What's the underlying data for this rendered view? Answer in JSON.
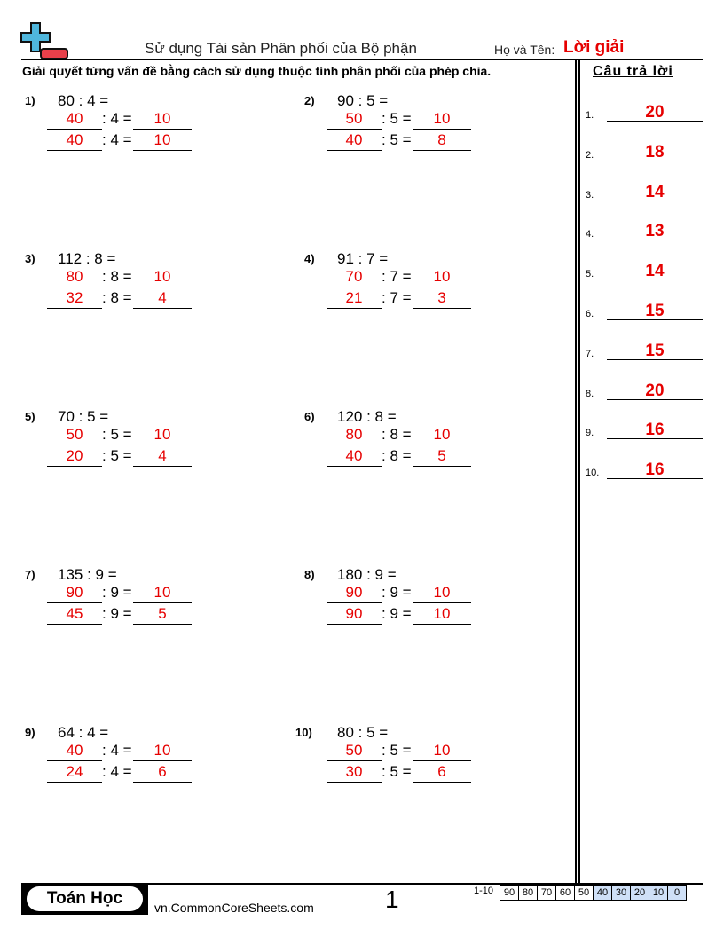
{
  "header": {
    "title": "Sử dụng Tài sản Phân phối của Bộ phận",
    "name_label": "Họ và Tên:",
    "name_value": "Lời giải",
    "instructions": "Giải quyết từng vấn đề bằng cách sử dụng thuộc tính phân phối của phép chia.",
    "answers_heading": "Câu trả lời"
  },
  "problems": [
    {
      "num": "1)",
      "expr": "80 : 4 =",
      "rows": [
        {
          "a": "40",
          "op": ": 4 =",
          "r": "10"
        },
        {
          "a": "40",
          "op": ": 4 =",
          "r": "10"
        }
      ]
    },
    {
      "num": "2)",
      "expr": "90 : 5 =",
      "rows": [
        {
          "a": "50",
          "op": ": 5 =",
          "r": "10"
        },
        {
          "a": "40",
          "op": ": 5 =",
          "r": "8"
        }
      ]
    },
    {
      "num": "3)",
      "expr": "112 : 8 =",
      "rows": [
        {
          "a": "80",
          "op": ": 8 =",
          "r": "10"
        },
        {
          "a": "32",
          "op": ": 8 =",
          "r": "4"
        }
      ]
    },
    {
      "num": "4)",
      "expr": "91 : 7 =",
      "rows": [
        {
          "a": "70",
          "op": ": 7 =",
          "r": "10"
        },
        {
          "a": "21",
          "op": ": 7 =",
          "r": "3"
        }
      ]
    },
    {
      "num": "5)",
      "expr": "70 : 5 =",
      "rows": [
        {
          "a": "50",
          "op": ": 5 =",
          "r": "10"
        },
        {
          "a": "20",
          "op": ": 5 =",
          "r": "4"
        }
      ]
    },
    {
      "num": "6)",
      "expr": "120 : 8 =",
      "rows": [
        {
          "a": "80",
          "op": ": 8 =",
          "r": "10"
        },
        {
          "a": "40",
          "op": ": 8 =",
          "r": "5"
        }
      ]
    },
    {
      "num": "7)",
      "expr": "135 : 9 =",
      "rows": [
        {
          "a": "90",
          "op": ": 9 =",
          "r": "10"
        },
        {
          "a": "45",
          "op": ": 9 =",
          "r": "5"
        }
      ]
    },
    {
      "num": "8)",
      "expr": "180 : 9 =",
      "rows": [
        {
          "a": "90",
          "op": ": 9 =",
          "r": "10"
        },
        {
          "a": "90",
          "op": ": 9 =",
          "r": "10"
        }
      ]
    },
    {
      "num": "9)",
      "expr": "64 : 4 =",
      "rows": [
        {
          "a": "40",
          "op": ": 4 =",
          "r": "10"
        },
        {
          "a": "24",
          "op": ": 4 =",
          "r": "6"
        }
      ]
    },
    {
      "num": "10)",
      "expr": "80 : 5 =",
      "rows": [
        {
          "a": "50",
          "op": ": 5 =",
          "r": "10"
        },
        {
          "a": "30",
          "op": ": 5 =",
          "r": "6"
        }
      ]
    }
  ],
  "answers": [
    {
      "n": "1.",
      "v": "20"
    },
    {
      "n": "2.",
      "v": "18"
    },
    {
      "n": "3.",
      "v": "14"
    },
    {
      "n": "4.",
      "v": "13"
    },
    {
      "n": "5.",
      "v": "14"
    },
    {
      "n": "6.",
      "v": "15"
    },
    {
      "n": "7.",
      "v": "15"
    },
    {
      "n": "8.",
      "v": "20"
    },
    {
      "n": "9.",
      "v": "16"
    },
    {
      "n": "10.",
      "v": "16"
    }
  ],
  "footer": {
    "brand": "Toán Học",
    "site": "vn.CommonCoreSheets.com",
    "page": "1",
    "score_label": "1-10",
    "scores": [
      "90",
      "80",
      "70",
      "60",
      "50",
      "40",
      "30",
      "20",
      "10",
      "0"
    ]
  },
  "colors": {
    "answer": "#e60000",
    "logo_plus": "#4fb6dc",
    "logo_minus": "#e8404a",
    "score_highlight": "#cfe0f7"
  }
}
